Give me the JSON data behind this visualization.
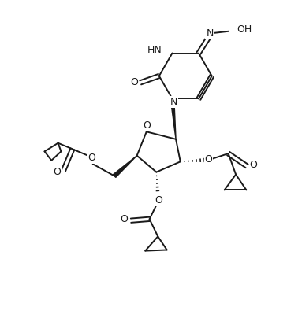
{
  "bg_color": "#ffffff",
  "line_color": "#1a1a1a",
  "line_width": 1.4,
  "figsize": [
    3.83,
    4.04
  ],
  "dpi": 100,
  "xlim": [
    0,
    10
  ],
  "ylim": [
    0,
    10.55
  ]
}
